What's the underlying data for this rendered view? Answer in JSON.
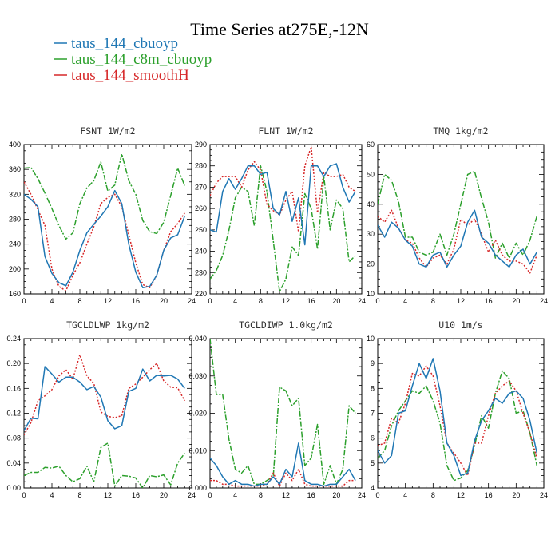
{
  "figure": {
    "title": "Time Series at275E,-12N",
    "legend": [
      {
        "label": "taus_144_cbuoyp",
        "color": "#1f77b4",
        "dash": "solid"
      },
      {
        "label": "taus_144_c8m_cbuoyp",
        "color": "#2ca02c",
        "dash": "dashdot"
      },
      {
        "label": "taus_144_smoothH",
        "color": "#d62728",
        "dash": "dotted"
      }
    ]
  },
  "chart_data": [
    {
      "type": "line",
      "title": "FSNT   1W/m2",
      "x": [
        0,
        1,
        2,
        3,
        4,
        5,
        6,
        7,
        8,
        9,
        10,
        11,
        12,
        13,
        14,
        15,
        16,
        17,
        18,
        19,
        20,
        21,
        22,
        23
      ],
      "xlim": [
        0,
        24
      ],
      "xticks": [
        0,
        4,
        8,
        12,
        16,
        20,
        24
      ],
      "xtick_labels": [
        "0",
        "4",
        "8",
        "12",
        "16",
        "20",
        "24"
      ],
      "ylim": [
        160,
        400
      ],
      "yticks": [
        160,
        200,
        240,
        280,
        320,
        360,
        400
      ],
      "ytick_labels": [
        "160",
        "200",
        "240",
        "280",
        "320",
        "360",
        "400"
      ],
      "series": [
        {
          "name": "taus_144_cbuoyp",
          "values": [
            320,
            312,
            300,
            220,
            193,
            178,
            173,
            195,
            230,
            258,
            272,
            285,
            300,
            326,
            305,
            240,
            195,
            170,
            172,
            190,
            230,
            250,
            255,
            285
          ]
        },
        {
          "name": "taus_144_c8m_cbuoyp",
          "values": [
            362,
            363,
            345,
            322,
            297,
            270,
            248,
            258,
            305,
            330,
            342,
            372,
            325,
            335,
            385,
            342,
            320,
            278,
            260,
            257,
            275,
            318,
            362,
            334
          ]
        },
        {
          "name": "taus_144_smoothH",
          "values": [
            340,
            320,
            295,
            270,
            200,
            172,
            165,
            190,
            210,
            240,
            268,
            305,
            315,
            320,
            300,
            255,
            210,
            175,
            170,
            190,
            230,
            260,
            273,
            290
          ]
        }
      ]
    },
    {
      "type": "line",
      "title": "FLNT   1W/m2",
      "x": [
        0,
        1,
        2,
        3,
        4,
        5,
        6,
        7,
        8,
        9,
        10,
        11,
        12,
        13,
        14,
        15,
        16,
        17,
        18,
        19,
        20,
        21,
        22,
        23
      ],
      "xlim": [
        0,
        24
      ],
      "xticks": [
        0,
        4,
        8,
        12,
        16,
        20,
        24
      ],
      "xtick_labels": [
        "0",
        "4",
        "8",
        "12",
        "16",
        "20",
        "24"
      ],
      "ylim": [
        220,
        290
      ],
      "yticks": [
        220,
        230,
        240,
        250,
        260,
        270,
        280,
        290
      ],
      "ytick_labels": [
        "220",
        "230",
        "240",
        "250",
        "260",
        "270",
        "280",
        "290"
      ],
      "series": [
        {
          "name": "taus_144_cbuoyp",
          "values": [
            250,
            249,
            268,
            274,
            269,
            274,
            280,
            280,
            276,
            277,
            260,
            257,
            268,
            254,
            265,
            243,
            280,
            280,
            275,
            280,
            281,
            270,
            263,
            268
          ]
        },
        {
          "name": "taus_144_c8m_cbuoyp",
          "values": [
            227,
            231,
            238,
            250,
            265,
            270,
            268,
            252,
            280,
            268,
            245,
            221,
            227,
            242,
            238,
            267,
            260,
            241,
            275,
            250,
            264,
            260,
            235,
            238
          ]
        },
        {
          "name": "taus_144_smoothH",
          "values": [
            266,
            272,
            275,
            275,
            275,
            270,
            278,
            282,
            278,
            262,
            259,
            257,
            264,
            268,
            249,
            280,
            289,
            258,
            277,
            275,
            275,
            276,
            270,
            268
          ]
        }
      ]
    },
    {
      "type": "line",
      "title": "TMQ   1kg/m2",
      "x": [
        0,
        1,
        2,
        3,
        4,
        5,
        6,
        7,
        8,
        9,
        10,
        11,
        12,
        13,
        14,
        15,
        16,
        17,
        18,
        19,
        20,
        21,
        22,
        23
      ],
      "xlim": [
        0,
        24
      ],
      "xticks": [
        0,
        4,
        8,
        12,
        16,
        20,
        24
      ],
      "xtick_labels": [
        "0",
        "4",
        "8",
        "12",
        "16",
        "20",
        "24"
      ],
      "ylim": [
        10,
        60
      ],
      "yticks": [
        10,
        20,
        30,
        40,
        50,
        60
      ],
      "ytick_labels": [
        "10",
        "20",
        "30",
        "40",
        "50",
        "60"
      ],
      "series": [
        {
          "name": "taus_144_cbuoyp",
          "values": [
            33,
            29,
            34,
            32,
            28,
            26,
            20,
            19,
            23,
            24,
            19,
            23,
            26,
            34,
            38,
            29,
            27,
            23,
            21,
            19,
            23,
            25,
            20,
            24
          ]
        },
        {
          "name": "taus_144_c8m_cbuoyp",
          "values": [
            40,
            50,
            48,
            41,
            29,
            29,
            24,
            23,
            24,
            30,
            23,
            30,
            40,
            50,
            51,
            42,
            34,
            22,
            27,
            22,
            27,
            23,
            28,
            36
          ]
        },
        {
          "name": "taus_144_smoothH",
          "values": [
            36,
            34,
            38,
            32,
            28,
            27,
            22,
            19,
            22,
            23,
            20,
            25,
            35,
            33,
            35,
            30,
            24,
            28,
            23,
            21,
            21,
            20,
            17,
            23
          ]
        }
      ]
    },
    {
      "type": "line",
      "title": "TGCLDLWP   1kg/m2",
      "x": [
        0,
        1,
        2,
        3,
        4,
        5,
        6,
        7,
        8,
        9,
        10,
        11,
        12,
        13,
        14,
        15,
        16,
        17,
        18,
        19,
        20,
        21,
        22,
        23
      ],
      "xlim": [
        0,
        24
      ],
      "xticks": [
        0,
        4,
        8,
        12,
        16,
        20,
        24
      ],
      "xtick_labels": [
        "0",
        "4",
        "8",
        "12",
        "16",
        "20",
        "24"
      ],
      "ylim": [
        0,
        0.24
      ],
      "yticks": [
        0,
        0.04,
        0.08,
        0.12,
        0.16,
        0.2,
        0.24
      ],
      "ytick_labels": [
        "0.00",
        "0.04",
        "0.08",
        "0.12",
        "0.16",
        "0.20",
        "0.24"
      ],
      "series": [
        {
          "name": "taus_144_cbuoyp",
          "values": [
            0.092,
            0.112,
            0.111,
            0.195,
            0.183,
            0.17,
            0.178,
            0.178,
            0.17,
            0.158,
            0.163,
            0.146,
            0.108,
            0.095,
            0.1,
            0.155,
            0.16,
            0.191,
            0.172,
            0.181,
            0.18,
            0.181,
            0.175,
            0.16
          ]
        },
        {
          "name": "taus_144_c8m_cbuoyp",
          "values": [
            0.02,
            0.025,
            0.025,
            0.033,
            0.032,
            0.035,
            0.02,
            0.01,
            0.015,
            0.035,
            0.01,
            0.065,
            0.072,
            0.003,
            0.02,
            0.019,
            0.016,
            0.0,
            0.02,
            0.018,
            0.021,
            0.005,
            0.04,
            0.056
          ]
        },
        {
          "name": "taus_144_smoothH",
          "values": [
            0.085,
            0.105,
            0.14,
            0.148,
            0.158,
            0.18,
            0.19,
            0.175,
            0.214,
            0.18,
            0.168,
            0.122,
            0.115,
            0.113,
            0.116,
            0.16,
            0.167,
            0.178,
            0.19,
            0.2,
            0.172,
            0.162,
            0.161,
            0.14
          ]
        }
      ]
    },
    {
      "type": "line",
      "title": "TGCLDIWP   1.0kg/m2",
      "x": [
        0,
        1,
        2,
        3,
        4,
        5,
        6,
        7,
        8,
        9,
        10,
        11,
        12,
        13,
        14,
        15,
        16,
        17,
        18,
        19,
        20,
        21,
        22,
        23
      ],
      "xlim": [
        0,
        24
      ],
      "xticks": [
        0,
        4,
        8,
        12,
        16,
        20,
        24
      ],
      "xtick_labels": [
        "0",
        "4",
        "8",
        "12",
        "16",
        "20",
        "24"
      ],
      "ylim": [
        0,
        0.04
      ],
      "yticks": [
        0,
        0.01,
        0.02,
        0.03,
        0.04
      ],
      "ytick_labels": [
        "0.000",
        "0.010",
        "0.020",
        "0.030",
        "0.040"
      ],
      "series": [
        {
          "name": "taus_144_cbuoyp",
          "values": [
            0.008,
            0.006,
            0.003,
            0.001,
            0.002,
            0.001,
            0.001,
            0.0005,
            0.001,
            0.001,
            0.003,
            0.001,
            0.005,
            0.003,
            0.012,
            0.002,
            0.001,
            0.001,
            0.0005,
            0.001,
            0.001,
            0.003,
            0.005,
            0.002
          ]
        },
        {
          "name": "taus_144_c8m_cbuoyp",
          "values": [
            0.04,
            0.025,
            0.025,
            0.013,
            0.005,
            0.004,
            0.006,
            0.001,
            0.001,
            0.002,
            0.003,
            0.027,
            0.026,
            0.022,
            0.024,
            0.006,
            0.008,
            0.017,
            0.001,
            0.006,
            0.001,
            0.005,
            0.022,
            0.02
          ]
        },
        {
          "name": "taus_144_smoothH",
          "values": [
            0.002,
            0.002,
            0.001,
            0.001,
            0.0005,
            0.0005,
            0.0005,
            0.0005,
            0.0005,
            0.001,
            0.004,
            0.0005,
            0.004,
            0.002,
            0.005,
            0.001,
            0.0005,
            0.0005,
            0.0005,
            0.0005,
            0.0005,
            0.0005,
            0.002,
            0.002
          ]
        }
      ]
    },
    {
      "type": "line",
      "title": "U10   1m/s",
      "x": [
        0,
        1,
        2,
        3,
        4,
        5,
        6,
        7,
        8,
        9,
        10,
        11,
        12,
        13,
        14,
        15,
        16,
        17,
        18,
        19,
        20,
        21,
        22,
        23
      ],
      "xlim": [
        0,
        24
      ],
      "xticks": [
        0,
        4,
        8,
        12,
        16,
        20,
        24
      ],
      "xtick_labels": [
        "0",
        "4",
        "8",
        "12",
        "16",
        "20",
        "24"
      ],
      "ylim": [
        4,
        10
      ],
      "yticks": [
        4,
        5,
        6,
        7,
        8,
        9,
        10
      ],
      "ytick_labels": [
        "4",
        "5",
        "6",
        "7",
        "8",
        "9",
        "10"
      ],
      "series": [
        {
          "name": "taus_144_cbuoyp",
          "values": [
            5.5,
            5.0,
            5.3,
            7.0,
            7.1,
            8.1,
            9.0,
            8.4,
            9.2,
            7.9,
            5.8,
            5.3,
            4.5,
            4.6,
            5.9,
            6.7,
            7.1,
            7.6,
            7.4,
            7.8,
            7.9,
            7.6,
            6.7,
            5.4
          ]
        },
        {
          "name": "taus_144_c8m_cbuoyp",
          "values": [
            5.2,
            5.5,
            6.5,
            7.1,
            7.5,
            7.9,
            7.8,
            8.1,
            7.5,
            6.6,
            4.9,
            4.3,
            4.4,
            4.7,
            5.7,
            6.9,
            6.4,
            7.8,
            8.7,
            8.4,
            7.0,
            7.1,
            6.2,
            4.9
          ]
        },
        {
          "name": "taus_144_smoothH",
          "values": [
            5.7,
            5.8,
            6.8,
            6.6,
            7.4,
            8.6,
            8.5,
            8.9,
            8.5,
            7.3,
            5.8,
            5.4,
            5.0,
            4.5,
            5.8,
            5.8,
            6.9,
            7.8,
            8.1,
            8.3,
            7.9,
            7.0,
            6.2,
            5.2
          ]
        }
      ]
    }
  ]
}
